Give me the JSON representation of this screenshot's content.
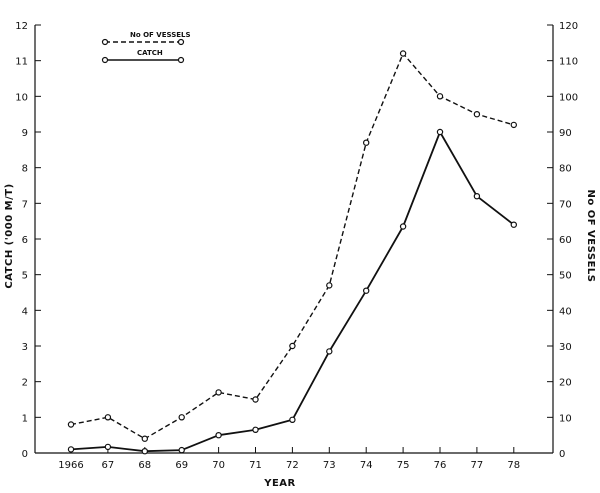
{
  "chart_data": {
    "type": "line",
    "xlabel": "YEAR",
    "ylabel_left": "CATCH  ('000 M/T)",
    "ylabel_right": "No OF VESSELS",
    "x_ticks": [
      "1966",
      "67",
      "68",
      "69",
      "70",
      "71",
      "72",
      "73",
      "74",
      "75",
      "76",
      "77",
      "78"
    ],
    "ylim_left": [
      0,
      12
    ],
    "yticks_left": [
      "0",
      "1",
      "2",
      "3",
      "4",
      "5",
      "6",
      "7",
      "8",
      "9",
      "10",
      "11",
      "12"
    ],
    "ylim_right": [
      0,
      120
    ],
    "yticks_right": [
      "0",
      "10",
      "20",
      "30",
      "40",
      "50",
      "60",
      "70",
      "80",
      "90",
      "100",
      "110",
      "120"
    ],
    "grid": false,
    "legend_position": "top-left",
    "series": [
      {
        "name": "No OF VESSELS",
        "axis": "right",
        "style": "dashed",
        "values": [
          8,
          10,
          4,
          10,
          17,
          15,
          30,
          47,
          87,
          112,
          100,
          95,
          92
        ]
      },
      {
        "name": "CATCH",
        "axis": "left",
        "style": "solid",
        "values": [
          0.1,
          0.17,
          0.05,
          0.08,
          0.5,
          0.65,
          0.93,
          2.85,
          4.55,
          6.35,
          9.0,
          7.2,
          6.4
        ]
      }
    ]
  }
}
